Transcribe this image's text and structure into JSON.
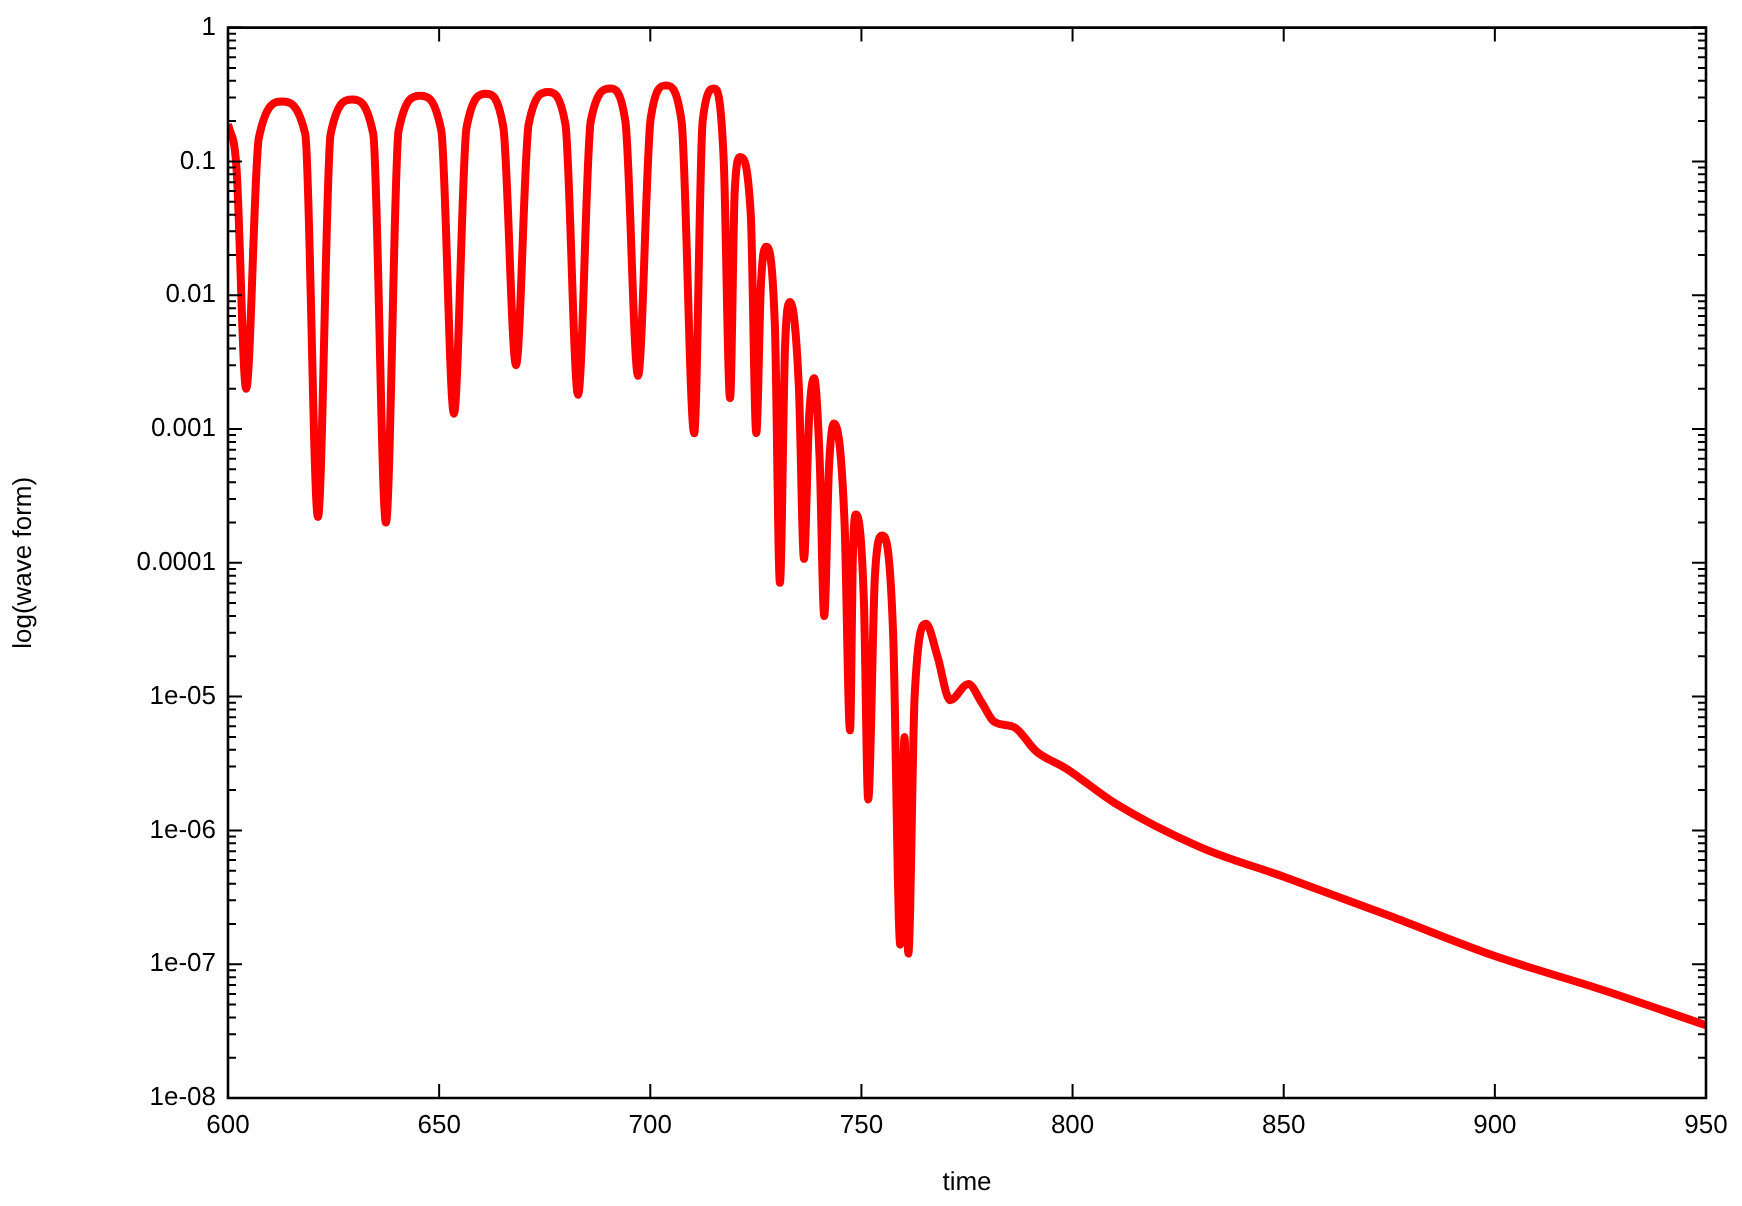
{
  "chart_data": {
    "type": "line",
    "xlabel": "time",
    "ylabel": "log(wave form)",
    "log": "y",
    "grid": false,
    "legend": false,
    "marker": "none",
    "line_style": "solid",
    "xlim": [
      600,
      950
    ],
    "xticks": [
      600,
      650,
      700,
      750,
      800,
      850,
      900,
      950
    ],
    "ylim": [
      1e-08,
      1
    ],
    "yticks": [
      {
        "value": 1e-08,
        "label": "1e-08"
      },
      {
        "value": 1e-07,
        "label": "1e-07"
      },
      {
        "value": 1e-06,
        "label": "1e-06"
      },
      {
        "value": 1e-05,
        "label": "1e-05"
      },
      0.0001,
      0.001,
      0.01,
      0.1,
      1
    ],
    "x": [
      600,
      602,
      604.3,
      607.3,
      612.8,
      618.3,
      621.3,
      624.3,
      629.4,
      634.4,
      637.4,
      640.4,
      645.5,
      650.5,
      653.5,
      656.5,
      661.1,
      665.2,
      668.2,
      671.2,
      675.8,
      679.9,
      682.9,
      685.9,
      690.5,
      694.1,
      697.1,
      700.1,
      703.7,
      707.4,
      710.4,
      712.4,
      715.1,
      717.4,
      718.9,
      720,
      721.3,
      723.8,
      725.1,
      726.2,
      727.4,
      729.5,
      730.7,
      731.9,
      733.1,
      735.2,
      736.4,
      737.6,
      738.8,
      740.1,
      741.2,
      742.3,
      743.5,
      746,
      747.3,
      748,
      748.7,
      750.6,
      751.6,
      753.2,
      754.9,
      757.5,
      759.2,
      760.2,
      761.1,
      762.6,
      765.3,
      768,
      771,
      775.3,
      778.5,
      781.4,
      786.2,
      791.4,
      798.5,
      810,
      830.2,
      850,
      875,
      900,
      925,
      950
    ],
    "series": [
      {
        "color": "#ff0000",
        "values": [
          0.19,
          0.09,
          0.002,
          0.15,
          0.28,
          0.16,
          0.00022,
          0.16,
          0.29,
          0.16,
          0.0002,
          0.17,
          0.31,
          0.17,
          0.0013,
          0.18,
          0.32,
          0.18,
          0.003,
          0.19,
          0.33,
          0.19,
          0.0018,
          0.2,
          0.35,
          0.2,
          0.0025,
          0.21,
          0.37,
          0.2,
          0.00093,
          0.2,
          0.35,
          0.1,
          0.0017,
          0.06,
          0.108,
          0.04,
          0.00093,
          0.012,
          0.023,
          0.006,
          7.1e-05,
          0.004,
          0.0089,
          0.002,
          0.000107,
          0.0012,
          0.0024,
          0.0006,
          4e-05,
          0.0005,
          0.0011,
          0.0002,
          5.6e-06,
          0.00012,
          0.00023,
          5e-05,
          1.7e-06,
          8e-05,
          0.00016,
          3e-05,
          1.4e-07,
          5e-06,
          1.2e-07,
          1e-05,
          3.5e-05,
          2e-05,
          9.4e-06,
          1.24e-05,
          9e-06,
          6.5e-06,
          5.9e-06,
          3.9e-06,
          2.9e-06,
          1.6e-06,
          7.5e-07,
          4.5e-07,
          2.3e-07,
          1.15e-07,
          6.5e-08,
          3.5e-08
        ]
      }
    ]
  }
}
